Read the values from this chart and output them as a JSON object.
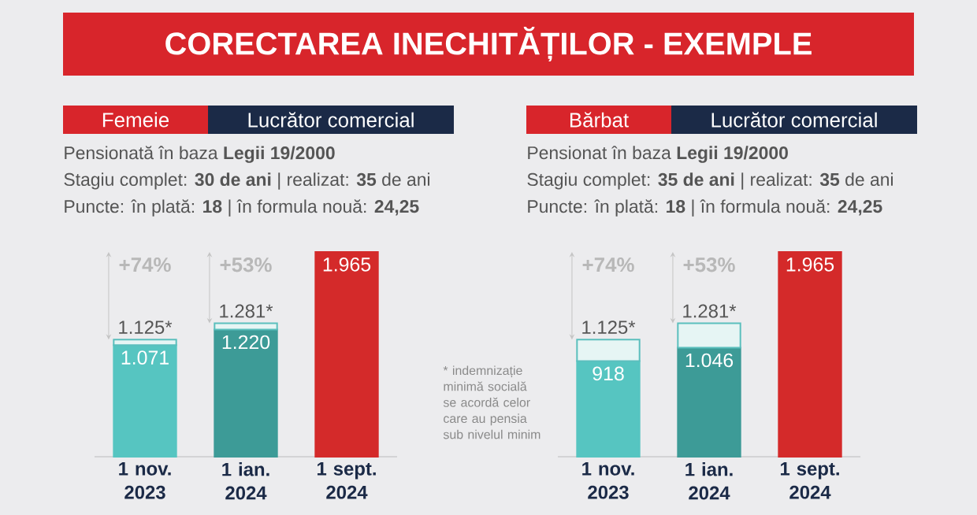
{
  "chart_data": [
    {
      "type": "other",
      "title": "CORECTAREA INECHITĂȚILOR - EXEMPLE",
      "annotations": [
        "* indemnizație minimă socială se acordă celor care au pensia sub nivelul minim"
      ]
    },
    {
      "type": "bar",
      "stacked": true,
      "title": "Femeie",
      "subtitle": "Lucrător comercial",
      "categories": [
        "1 nov. 2023",
        "1 ian. 2024",
        "1 sept. 2024"
      ],
      "series": [
        {
          "colors": [
            "#56c5c1",
            "#3d9b97",
            "#d42a2a"
          ],
          "values": [
            1071,
            1220,
            1965
          ],
          "value_labels": [
            "1.071",
            "1.220",
            "1.965"
          ]
        },
        {
          "color": "#e6f5f4",
          "values": [
            54,
            61,
            null
          ]
        }
      ],
      "annotations": [
        "Pensionată în baza **Legii 19/2000**",
        "Stagiu complet: **30 de ani** | realizat: **35** de ani",
        "Puncte: în plată: **18** | în formula nouă: **24,25**",
        "1.125*",
        "1.281*",
        "+74%",
        "+53%"
      ]
    },
    {
      "type": "bar",
      "stacked": true,
      "title": "Bărbat",
      "subtitle": "Lucrător comercial",
      "categories": [
        "1 nov. 2023",
        "1 ian. 2024",
        "1 sept. 2024"
      ],
      "series": [
        {
          "colors": [
            "#56c5c1",
            "#3d9b97",
            "#d42a2a"
          ],
          "values": [
            918,
            1046,
            1965
          ],
          "value_labels": [
            "918",
            "1.046",
            "1.965"
          ]
        },
        {
          "color": "#e6f5f4",
          "values": [
            207,
            235,
            null
          ]
        }
      ],
      "annotations": [
        "Pensionat în baza **Legii 19/2000**",
        "Stagiu complet: **35 de ani** | realizat: **35** de ani",
        "Puncte: în plată: **18** | în formula nouă: **24,25**",
        "1.125*",
        "1.281*",
        "+74%",
        "+53%"
      ]
    }
  ]
}
